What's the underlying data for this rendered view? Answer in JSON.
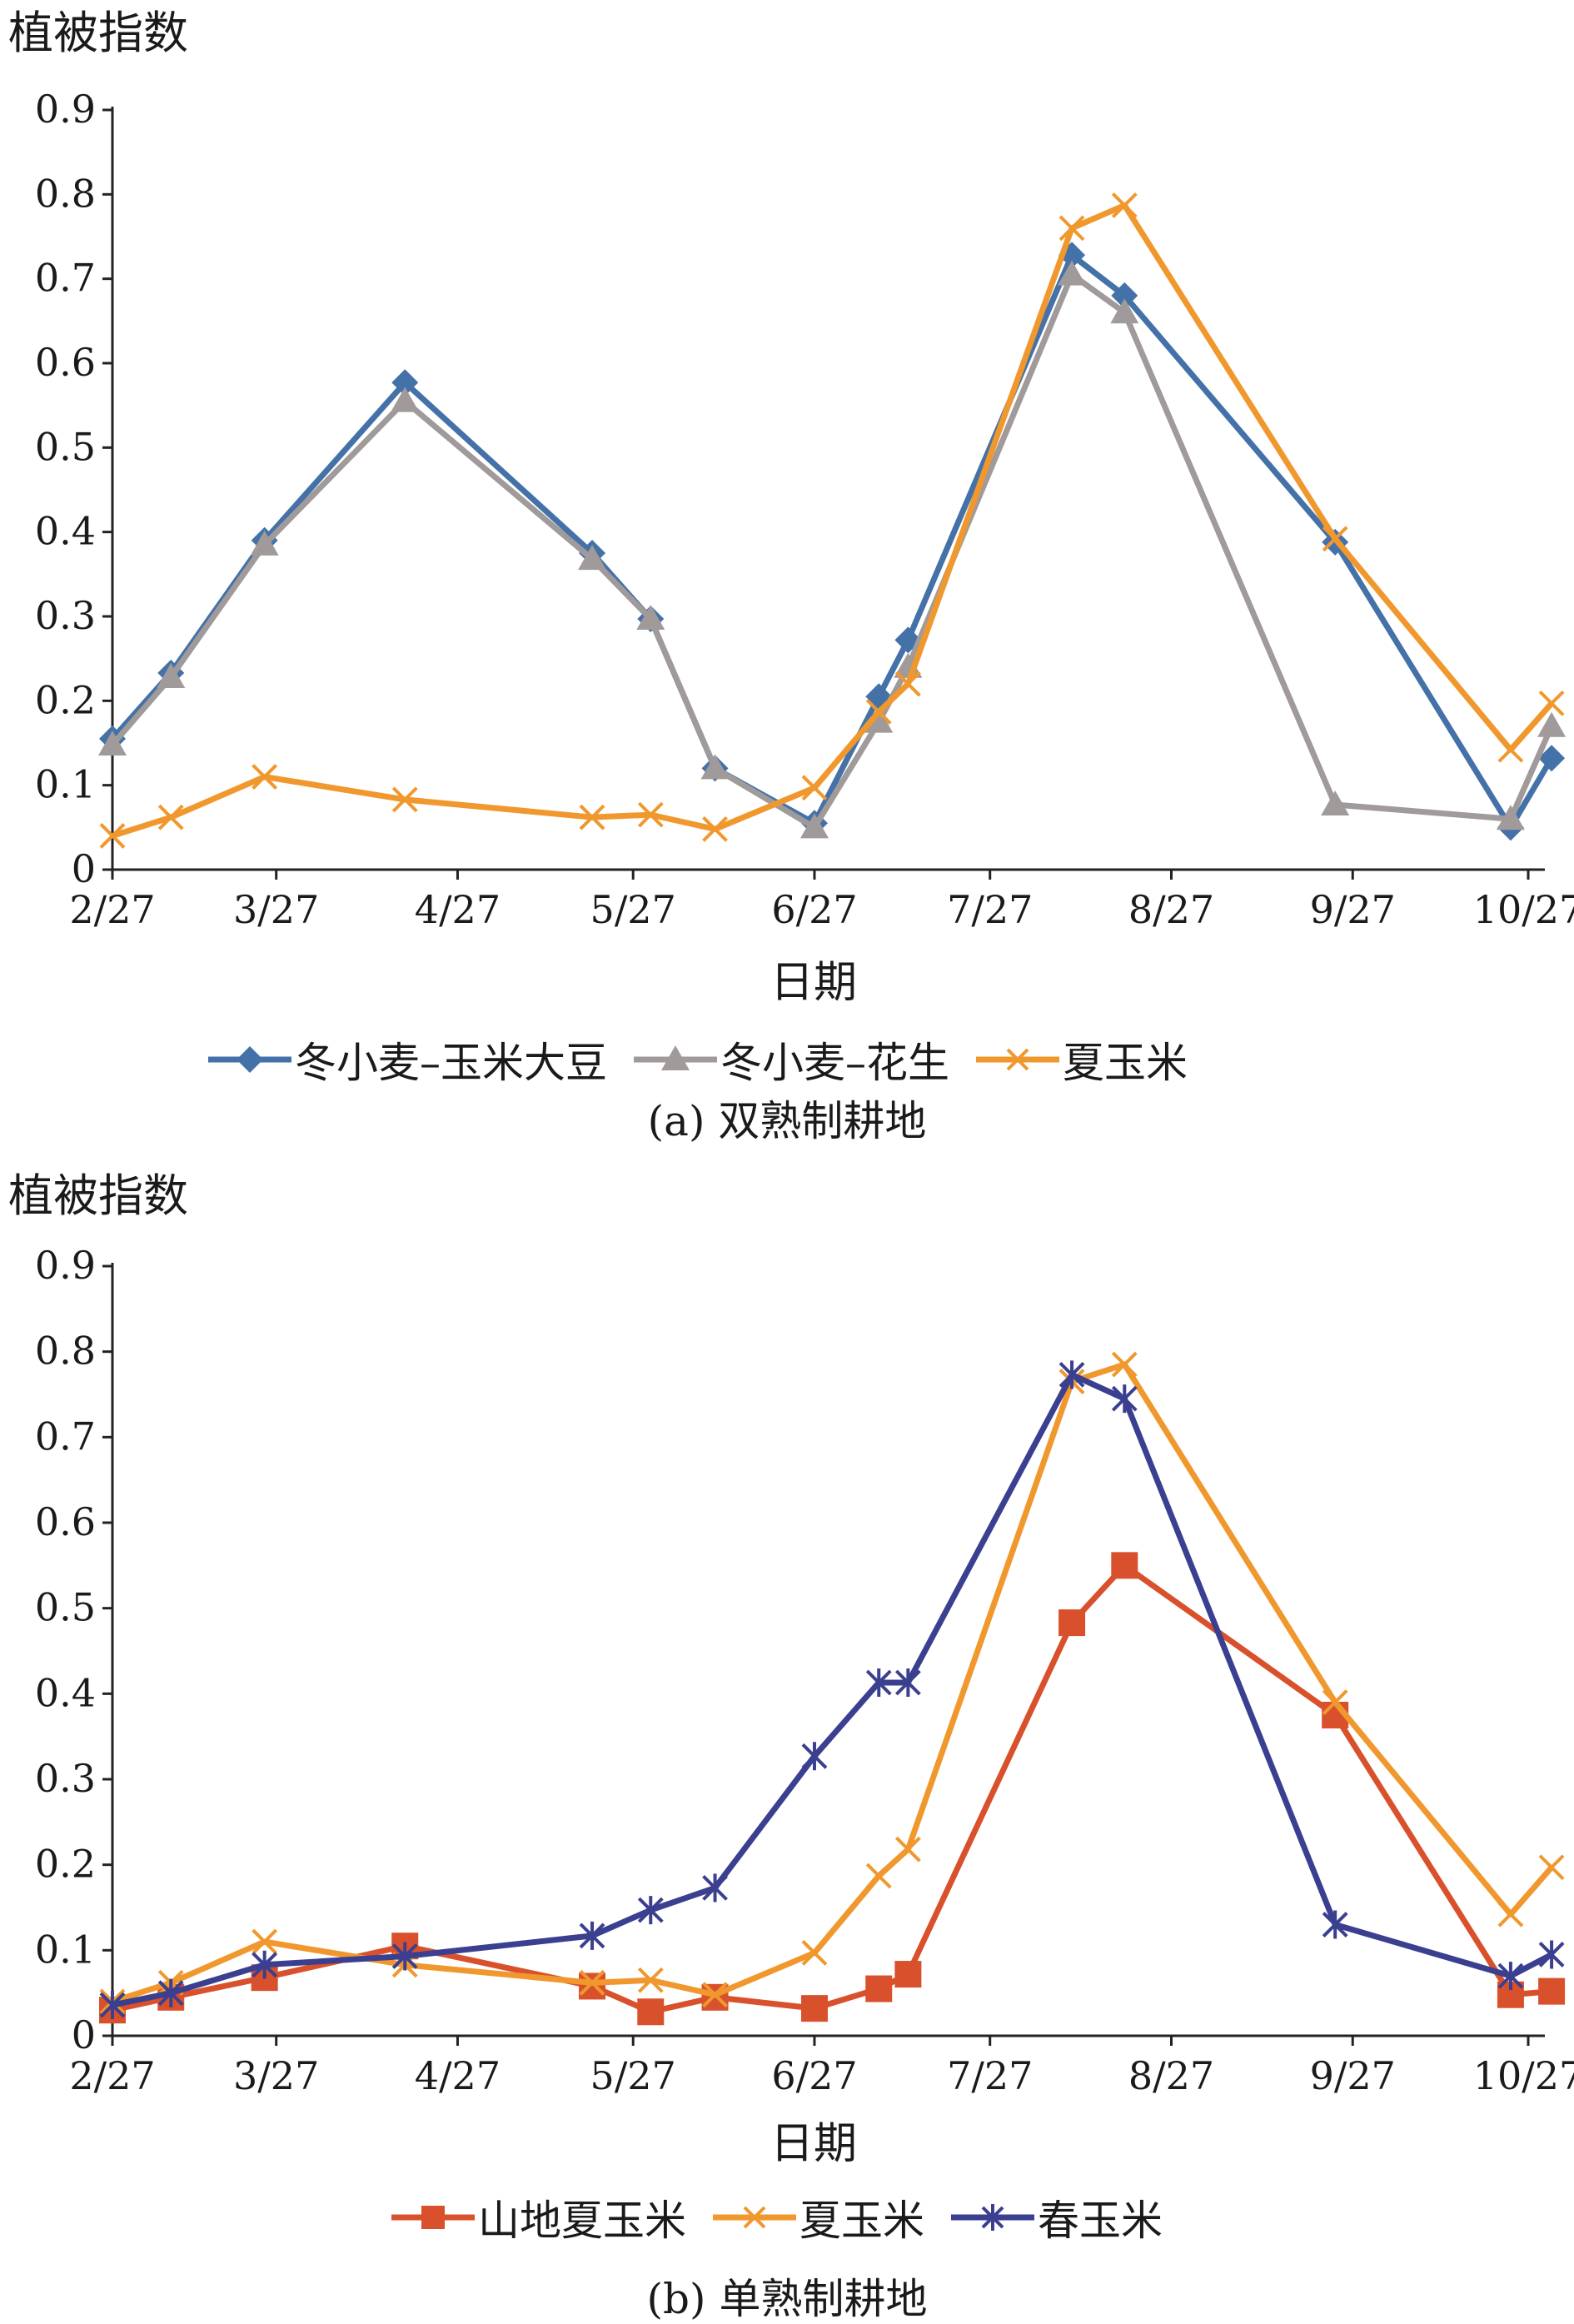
{
  "figure": {
    "panels": [
      {
        "ylabel": "植被指数",
        "xlabel": "日期",
        "caption": "(a) 双熟制耕地",
        "legend": [
          "冬小麦–玉米大豆",
          "冬小麦–花生",
          "夏玉米"
        ]
      },
      {
        "ylabel": "植被指数",
        "xlabel": "日期",
        "caption": "(b) 单熟制耕地",
        "legend": [
          "山地夏玉米",
          "夏玉米",
          "春玉米"
        ]
      }
    ]
  },
  "chart_data": [
    {
      "type": "line",
      "title": "(a) 双熟制耕地",
      "xlabel": "日期",
      "ylabel": "植被指数",
      "x_ticks": [
        "2/27",
        "3/27",
        "4/27",
        "5/27",
        "6/27",
        "7/27",
        "8/27",
        "9/27",
        "10/27"
      ],
      "y_ticks": [
        "0",
        "0.1",
        "0.2",
        "0.3",
        "0.4",
        "0.5",
        "0.6",
        "0.7",
        "0.8",
        "0.9"
      ],
      "ylim": [
        0,
        0.9
      ],
      "xlim": [
        "2/27",
        "10/27"
      ],
      "legend_position": "bottom",
      "series": [
        {
          "name": "冬小麦–玉米大豆",
          "color": "#4472A8",
          "marker": "diamond",
          "points": [
            [
              "2/27",
              0.155
            ],
            [
              "3/9",
              0.233
            ],
            [
              "3/25",
              0.39
            ],
            [
              "4/18",
              0.577
            ],
            [
              "5/20",
              0.375
            ],
            [
              "5/30",
              0.297
            ],
            [
              "6/10",
              0.12
            ],
            [
              "6/27",
              0.055
            ],
            [
              "7/8",
              0.205
            ],
            [
              "7/13",
              0.272
            ],
            [
              "8/10",
              0.728
            ],
            [
              "8/19",
              0.68
            ],
            [
              "9/24",
              0.388
            ],
            [
              "10/24",
              0.05
            ],
            [
              "10/31",
              0.132
            ]
          ]
        },
        {
          "name": "冬小麦–花生",
          "color": "#A09A9A",
          "marker": "triangle",
          "points": [
            [
              "2/27",
              0.148
            ],
            [
              "3/9",
              0.228
            ],
            [
              "3/25",
              0.385
            ],
            [
              "4/18",
              0.555
            ],
            [
              "5/20",
              0.368
            ],
            [
              "5/30",
              0.297
            ],
            [
              "6/10",
              0.12
            ],
            [
              "6/27",
              0.05
            ],
            [
              "7/8",
              0.175
            ],
            [
              "7/13",
              0.24
            ],
            [
              "8/10",
              0.705
            ],
            [
              "8/19",
              0.66
            ],
            [
              "9/24",
              0.077
            ],
            [
              "10/24",
              0.06
            ],
            [
              "10/31",
              0.17
            ]
          ]
        },
        {
          "name": "夏玉米",
          "color": "#F0982E",
          "marker": "x",
          "points": [
            [
              "2/27",
              0.04
            ],
            [
              "3/9",
              0.062
            ],
            [
              "3/25",
              0.11
            ],
            [
              "4/18",
              0.083
            ],
            [
              "5/20",
              0.062
            ],
            [
              "5/30",
              0.065
            ],
            [
              "6/10",
              0.048
            ],
            [
              "6/27",
              0.097
            ],
            [
              "7/8",
              0.187
            ],
            [
              "7/13",
              0.22
            ],
            [
              "8/10",
              0.76
            ],
            [
              "8/19",
              0.787
            ],
            [
              "9/24",
              0.392
            ],
            [
              "10/24",
              0.142
            ],
            [
              "10/31",
              0.197
            ]
          ]
        }
      ]
    },
    {
      "type": "line",
      "title": "(b) 单熟制耕地",
      "xlabel": "日期",
      "ylabel": "植被指数",
      "x_ticks": [
        "2/27",
        "3/27",
        "4/27",
        "5/27",
        "6/27",
        "7/27",
        "8/27",
        "9/27",
        "10/27"
      ],
      "y_ticks": [
        "0",
        "0.1",
        "0.2",
        "0.3",
        "0.4",
        "0.5",
        "0.6",
        "0.7",
        "0.8",
        "0.9"
      ],
      "ylim": [
        0,
        0.9
      ],
      "xlim": [
        "2/27",
        "10/27"
      ],
      "legend_position": "bottom",
      "series": [
        {
          "name": "山地夏玉米",
          "color": "#D9512C",
          "marker": "square",
          "points": [
            [
              "2/27",
              0.03
            ],
            [
              "3/9",
              0.045
            ],
            [
              "3/25",
              0.068
            ],
            [
              "4/18",
              0.105
            ],
            [
              "5/20",
              0.058
            ],
            [
              "5/30",
              0.028
            ],
            [
              "6/10",
              0.045
            ],
            [
              "6/27",
              0.032
            ],
            [
              "7/8",
              0.055
            ],
            [
              "7/13",
              0.072
            ],
            [
              "8/10",
              0.483
            ],
            [
              "8/19",
              0.55
            ],
            [
              "9/24",
              0.375
            ],
            [
              "10/24",
              0.048
            ],
            [
              "10/31",
              0.052
            ]
          ]
        },
        {
          "name": "夏玉米",
          "color": "#F0982E",
          "marker": "x",
          "points": [
            [
              "2/27",
              0.04
            ],
            [
              "3/9",
              0.062
            ],
            [
              "3/25",
              0.11
            ],
            [
              "4/18",
              0.083
            ],
            [
              "5/20",
              0.062
            ],
            [
              "5/30",
              0.065
            ],
            [
              "6/10",
              0.048
            ],
            [
              "6/27",
              0.097
            ],
            [
              "7/8",
              0.187
            ],
            [
              "7/13",
              0.218
            ],
            [
              "8/10",
              0.765
            ],
            [
              "8/19",
              0.785
            ],
            [
              "9/24",
              0.39
            ],
            [
              "10/24",
              0.142
            ],
            [
              "10/31",
              0.197
            ]
          ]
        },
        {
          "name": "春玉米",
          "color": "#3B3F8F",
          "marker": "asterisk",
          "points": [
            [
              "2/27",
              0.036
            ],
            [
              "3/9",
              0.05
            ],
            [
              "3/25",
              0.083
            ],
            [
              "4/18",
              0.093
            ],
            [
              "5/20",
              0.117
            ],
            [
              "5/30",
              0.147
            ],
            [
              "6/10",
              0.173
            ],
            [
              "6/27",
              0.327
            ],
            [
              "7/8",
              0.413
            ],
            [
              "7/13",
              0.413
            ],
            [
              "8/10",
              0.773
            ],
            [
              "8/19",
              0.745
            ],
            [
              "9/24",
              0.13
            ],
            [
              "10/24",
              0.07
            ],
            [
              "10/31",
              0.095
            ]
          ]
        }
      ]
    }
  ]
}
